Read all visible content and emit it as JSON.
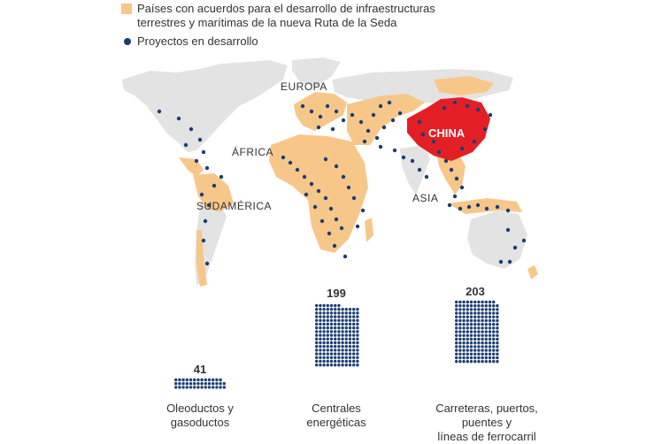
{
  "legend": {
    "countries_line1": "Países con acuerdos para el desarrollo de infraestructuras",
    "countries_line2": "terrestres y marítimas de la nueva Ruta de la Seda",
    "projects": "Proyectos en desarrollo"
  },
  "map": {
    "labels": {
      "europe": "EUROPA",
      "africa": "ÁFRICA",
      "south_america": "SUDAMÉRICA",
      "asia": "ASIA",
      "china": "CHINA"
    }
  },
  "colors": {
    "partner": "#f7c78a",
    "other": "#e3e3e3",
    "china": "#e31f26",
    "dot": "#1a3d73"
  },
  "chart_data": {
    "type": "bar",
    "categories": [
      "Oleoductos y gasoductos",
      "Centrales energéticas",
      "Carreteras, puertos, puentes y líneas de ferrocarril"
    ],
    "values": [
      41,
      199,
      203
    ]
  },
  "stats": [
    {
      "count": "41",
      "line1": "Oleoductos y",
      "line2": "gasoductos",
      "line3": ""
    },
    {
      "count": "199",
      "line1": "Centrales",
      "line2": "energéticas",
      "line3": ""
    },
    {
      "count": "203",
      "line1": "Carreteras, puertos,",
      "line2": "puentes y",
      "line3": "líneas de ferrocarril"
    }
  ]
}
